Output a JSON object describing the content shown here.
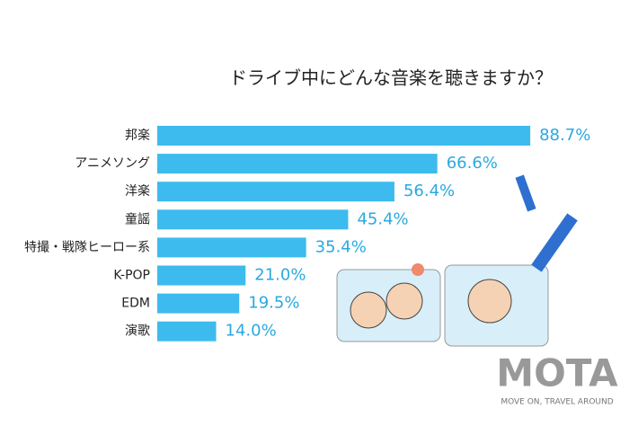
{
  "chart_data": {
    "type": "bar",
    "orientation": "horizontal",
    "title": "ドライブ中にどんな音楽を聴きますか？",
    "categories": [
      "邦楽",
      "アニメソング",
      "洋楽",
      "童謡",
      "特撮・戦隊ヒーロー系",
      "K-POP",
      "EDM",
      "演歌"
    ],
    "values": [
      88.7,
      66.6,
      56.4,
      45.4,
      35.4,
      21.0,
      19.5,
      14.0
    ],
    "value_labels": [
      "88.7%",
      "66.6%",
      "56.4%",
      "45.4%",
      "35.4%",
      "21.0%",
      "19.5%",
      "14.0%"
    ],
    "color": "#3dbbee"
  },
  "logo": {
    "name": "MOTA",
    "tagline": "MOVE ON, TRAVEL AROUND"
  }
}
